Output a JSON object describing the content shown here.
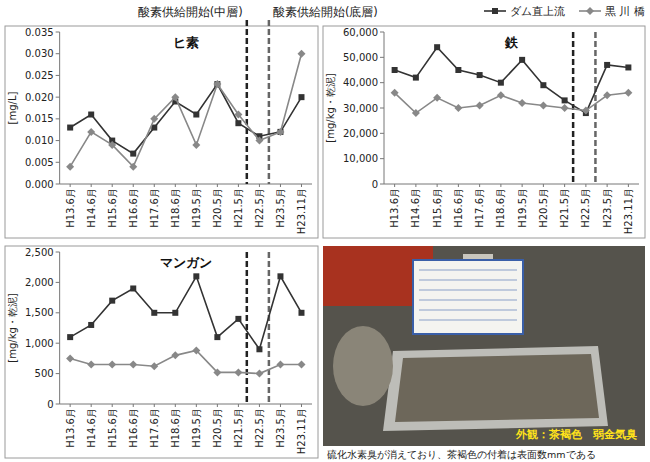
{
  "annotations": [
    {
      "text": "酸素供給開始(中層)",
      "x": 8.4,
      "color": "#222222"
    },
    {
      "text": "酸素供給開始(底層)",
      "x": 9.45,
      "color": "#666666"
    }
  ],
  "chart_data": [
    {
      "type": "line",
      "title": "ヒ素",
      "y_label": "[mg/L]",
      "legend": "top-right",
      "grid": false,
      "categories": [
        "H13.6月",
        "H14.6月",
        "H15.6月",
        "H16.6月",
        "H17.6月",
        "H18.6月",
        "H19.5月",
        "H20.5月",
        "H21.5月",
        "H22.5月",
        "H23.5月",
        "H23.11月"
      ],
      "series": [
        {
          "name": "ダム直上流",
          "color": "#333333",
          "marker": "square",
          "values": [
            0.013,
            0.016,
            0.01,
            0.007,
            0.013,
            0.019,
            0.016,
            0.023,
            0.014,
            0.011,
            0.012,
            0.02
          ]
        },
        {
          "name": "黒 川 橋",
          "color": "#888888",
          "marker": "diamond",
          "values": [
            0.004,
            0.012,
            0.009,
            0.004,
            0.015,
            0.02,
            0.009,
            0.023,
            0.016,
            0.01,
            0.012,
            0.03
          ]
        }
      ],
      "ylim": [
        0,
        0.035
      ],
      "yticks": [
        {
          "value": 0,
          "label": "0.000"
        },
        {
          "value": 0.005,
          "label": "0.005"
        },
        {
          "value": 0.01,
          "label": "0.010"
        },
        {
          "value": 0.015,
          "label": "0.015"
        },
        {
          "value": 0.02,
          "label": "0.020"
        },
        {
          "value": 0.025,
          "label": "0.025"
        },
        {
          "value": 0.03,
          "label": "0.030"
        },
        {
          "value": 0.035,
          "label": "0.035"
        }
      ]
    },
    {
      "type": "line",
      "title": "鉄",
      "y_label": "[mg/kg・乾泥]",
      "grid": false,
      "categories": [
        "H13.6月",
        "H14.6月",
        "H15.6月",
        "H16.6月",
        "H17.6月",
        "H18.6月",
        "H19.5月",
        "H20.5月",
        "H21.5月",
        "H22.5月",
        "H23.5月",
        "H23.11月"
      ],
      "series": [
        {
          "name": "ダム直上流",
          "color": "#333333",
          "marker": "square",
          "values": [
            45000,
            42000,
            54000,
            45000,
            43000,
            40000,
            49000,
            39000,
            33000,
            28000,
            47000,
            46000
          ]
        },
        {
          "name": "黒 川 橋",
          "color": "#888888",
          "marker": "diamond",
          "values": [
            36000,
            28000,
            34000,
            30000,
            31000,
            35000,
            32000,
            31000,
            30000,
            29000,
            35000,
            36000
          ]
        }
      ],
      "ylim": [
        0,
        60000
      ],
      "yticks": [
        0,
        {
          "value": 10000,
          "label": "10,000"
        },
        {
          "value": 20000,
          "label": "20,000"
        },
        {
          "value": 30000,
          "label": "30,000"
        },
        {
          "value": 40000,
          "label": "40,000"
        },
        {
          "value": 50000,
          "label": "50,000"
        },
        {
          "value": 60000,
          "label": "60,000"
        }
      ]
    },
    {
      "type": "line",
      "title": "マンガン",
      "y_label": "[mg/kg・乾泥]",
      "grid": false,
      "categories": [
        "H13.6月",
        "H14.6月",
        "H15.6月",
        "H16.6月",
        "H17.6月",
        "H18.6月",
        "H19.5月",
        "H20.5月",
        "H21.5月",
        "H22.5月",
        "H23.5月",
        "H23.11月"
      ],
      "series": [
        {
          "name": "ダム直上流",
          "color": "#333333",
          "marker": "square",
          "values": [
            1100,
            1300,
            1700,
            1900,
            1500,
            1500,
            2100,
            1100,
            1400,
            900,
            2100,
            1500
          ]
        },
        {
          "name": "黒 川 橋",
          "color": "#888888",
          "marker": "diamond",
          "values": [
            750,
            650,
            650,
            650,
            620,
            800,
            880,
            520,
            520,
            500,
            650,
            650
          ]
        }
      ],
      "ylim": [
        0,
        2500
      ],
      "yticks": [
        0,
        500,
        {
          "value": 1000,
          "label": "1,000"
        },
        {
          "value": 1500,
          "label": "1,500"
        },
        {
          "value": 2000,
          "label": "2,000"
        },
        {
          "value": 2500,
          "label": "2,500"
        }
      ]
    }
  ],
  "photo": {
    "caption": "外観：茶褐色　弱金気臭",
    "note": "硫化水素臭が消えており、茶褐色の付着は表面数mmである"
  }
}
